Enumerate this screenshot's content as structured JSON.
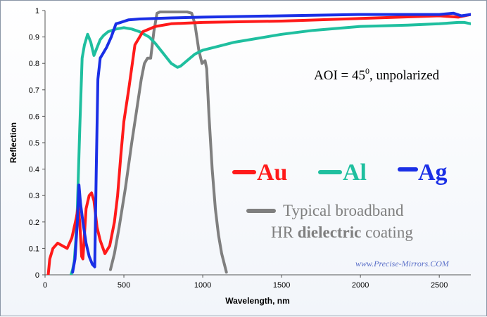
{
  "chart_data": {
    "type": "line",
    "title": "",
    "xlabel": "Wavelength, nm",
    "ylabel": "Reflection",
    "xlim": [
      0,
      2700
    ],
    "ylim": [
      0,
      1
    ],
    "x_ticks": [
      0,
      500,
      1000,
      1500,
      2000,
      2500
    ],
    "y_ticks": [
      0,
      0.1,
      0.2,
      0.3,
      0.4,
      0.5,
      0.6,
      0.7,
      0.8,
      0.9,
      1
    ],
    "x_tick_labels": [
      "0",
      "500",
      "1000",
      "1500",
      "2000",
      "2500"
    ],
    "y_tick_labels": [
      "0",
      "0.1",
      "0.2",
      "0.3",
      "0.4",
      "0.5",
      "0.6",
      "0.7",
      "0.8",
      "0.9",
      "1"
    ],
    "grid": false,
    "legend_position": "right-middle",
    "annotation": {
      "prefix": "AOI = 45",
      "superscript": "0",
      "suffix": ", unpolarized"
    },
    "watermark": "www.Precise-Mirrors.COM",
    "series": [
      {
        "name": "Au",
        "color": "#ff1a1a",
        "points": [
          [
            20,
            0
          ],
          [
            30,
            0.06
          ],
          [
            50,
            0.1
          ],
          [
            80,
            0.12
          ],
          [
            110,
            0.11
          ],
          [
            140,
            0.1
          ],
          [
            170,
            0.14
          ],
          [
            200,
            0.22
          ],
          [
            210,
            0.26
          ],
          [
            220,
            0.2
          ],
          [
            232,
            0.07
          ],
          [
            240,
            0.06
          ],
          [
            260,
            0.25
          ],
          [
            280,
            0.3
          ],
          [
            295,
            0.31
          ],
          [
            310,
            0.28
          ],
          [
            330,
            0.18
          ],
          [
            350,
            0.13
          ],
          [
            380,
            0.08
          ],
          [
            410,
            0.11
          ],
          [
            440,
            0.2
          ],
          [
            460,
            0.3
          ],
          [
            480,
            0.45
          ],
          [
            500,
            0.58
          ],
          [
            530,
            0.7
          ],
          [
            570,
            0.87
          ],
          [
            620,
            0.92
          ],
          [
            700,
            0.94
          ],
          [
            800,
            0.95
          ],
          [
            1000,
            0.955
          ],
          [
            1500,
            0.96
          ],
          [
            2000,
            0.97
          ],
          [
            2500,
            0.98
          ],
          [
            2620,
            0.975
          ],
          [
            2700,
            0.985
          ]
        ]
      },
      {
        "name": "Al",
        "color": "#1fbf9f",
        "points": [
          [
            165,
            0
          ],
          [
            175,
            0.02
          ],
          [
            185,
            0.05
          ],
          [
            195,
            0.13
          ],
          [
            205,
            0.25
          ],
          [
            220,
            0.55
          ],
          [
            235,
            0.82
          ],
          [
            250,
            0.87
          ],
          [
            270,
            0.91
          ],
          [
            290,
            0.88
          ],
          [
            310,
            0.83
          ],
          [
            330,
            0.86
          ],
          [
            350,
            0.89
          ],
          [
            370,
            0.905
          ],
          [
            400,
            0.92
          ],
          [
            450,
            0.93
          ],
          [
            500,
            0.935
          ],
          [
            550,
            0.93
          ],
          [
            600,
            0.92
          ],
          [
            660,
            0.9
          ],
          [
            700,
            0.875
          ],
          [
            760,
            0.83
          ],
          [
            800,
            0.8
          ],
          [
            840,
            0.785
          ],
          [
            860,
            0.79
          ],
          [
            900,
            0.81
          ],
          [
            950,
            0.835
          ],
          [
            1000,
            0.85
          ],
          [
            1100,
            0.865
          ],
          [
            1200,
            0.88
          ],
          [
            1500,
            0.91
          ],
          [
            1700,
            0.925
          ],
          [
            2000,
            0.94
          ],
          [
            2300,
            0.945
          ],
          [
            2500,
            0.95
          ],
          [
            2620,
            0.955
          ],
          [
            2660,
            0.955
          ],
          [
            2700,
            0.95
          ]
        ]
      },
      {
        "name": "Ag",
        "color": "#1a2fe6",
        "points": [
          [
            175,
            0.01
          ],
          [
            190,
            0.06
          ],
          [
            205,
            0.2
          ],
          [
            215,
            0.34
          ],
          [
            225,
            0.27
          ],
          [
            240,
            0.2
          ],
          [
            260,
            0.12
          ],
          [
            280,
            0.07
          ],
          [
            300,
            0.04
          ],
          [
            315,
            0.03
          ],
          [
            325,
            0.4
          ],
          [
            335,
            0.74
          ],
          [
            350,
            0.82
          ],
          [
            370,
            0.84
          ],
          [
            380,
            0.85
          ],
          [
            390,
            0.86
          ],
          [
            420,
            0.9
          ],
          [
            450,
            0.95
          ],
          [
            480,
            0.955
          ],
          [
            530,
            0.965
          ],
          [
            600,
            0.968
          ],
          [
            800,
            0.972
          ],
          [
            1000,
            0.975
          ],
          [
            1500,
            0.98
          ],
          [
            2000,
            0.985
          ],
          [
            2500,
            0.985
          ],
          [
            2590,
            0.99
          ],
          [
            2640,
            0.98
          ],
          [
            2700,
            0.985
          ]
        ]
      },
      {
        "name": "Typical broadband HR dielectric coating",
        "color": "#7f7f7f",
        "points": [
          [
            415,
            0.02
          ],
          [
            440,
            0.08
          ],
          [
            470,
            0.18
          ],
          [
            510,
            0.33
          ],
          [
            550,
            0.5
          ],
          [
            580,
            0.62
          ],
          [
            610,
            0.74
          ],
          [
            630,
            0.8
          ],
          [
            650,
            0.82
          ],
          [
            670,
            0.82
          ],
          [
            690,
            0.92
          ],
          [
            710,
            0.99
          ],
          [
            730,
            0.995
          ],
          [
            900,
            0.995
          ],
          [
            930,
            0.99
          ],
          [
            950,
            0.95
          ],
          [
            975,
            0.85
          ],
          [
            995,
            0.8
          ],
          [
            1015,
            0.81
          ],
          [
            1025,
            0.78
          ],
          [
            1040,
            0.6
          ],
          [
            1060,
            0.4
          ],
          [
            1080,
            0.25
          ],
          [
            1100,
            0.15
          ],
          [
            1120,
            0.08
          ],
          [
            1150,
            0.01
          ]
        ]
      }
    ]
  },
  "legend": {
    "au": "Au",
    "al": "Al",
    "ag": "Ag",
    "dielectric_line1": "Typical broadband",
    "dielectric_line2_pre": "HR ",
    "dielectric_line2_bold": "dielectric",
    "dielectric_line2_post": " coating"
  }
}
